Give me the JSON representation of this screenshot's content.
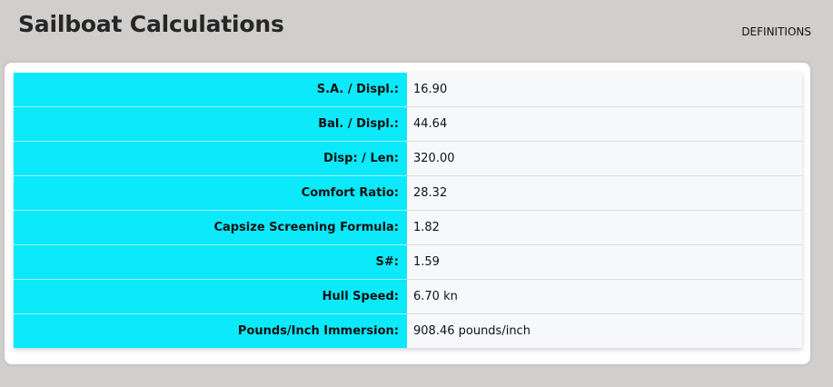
{
  "header": {
    "title": "Sailboat Calculations",
    "definitions_link": "DEFINITIONS"
  },
  "colors": {
    "label_background": "#0be9fb",
    "value_background": "#f7f8fa",
    "page_background": "#d0cfcd"
  },
  "rows": [
    {
      "label": "S.A. / Displ.:",
      "value": "16.90"
    },
    {
      "label": "Bal. / Displ.:",
      "value": "44.64"
    },
    {
      "label": "Disp: / Len:",
      "value": "320.00"
    },
    {
      "label": "Comfort Ratio:",
      "value": "28.32"
    },
    {
      "label": "Capsize Screening Formula:",
      "value": "1.82"
    },
    {
      "label": "S#:",
      "value": "1.59"
    },
    {
      "label": "Hull Speed:",
      "value": "6.70 kn"
    },
    {
      "label": "Pounds/Inch Immersion:",
      "value": "908.46 pounds/inch"
    }
  ]
}
